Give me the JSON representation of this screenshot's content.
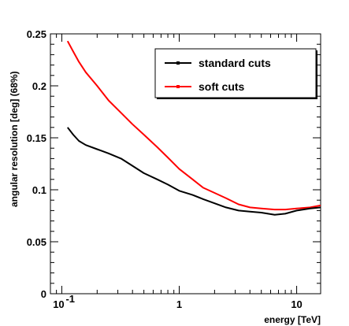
{
  "chart_data": {
    "type": "line",
    "title": "",
    "xlabel": "energy [TeV]",
    "ylabel": "angular resolution [deg] (68%)",
    "xscale": "log",
    "xlim": [
      0.08,
      16
    ],
    "ylim": [
      0,
      0.25
    ],
    "x_ticks": [
      {
        "value": 0.1,
        "label": "10",
        "exponent": "-1"
      },
      {
        "value": 1,
        "label": "1",
        "exponent": ""
      },
      {
        "value": 10,
        "label": "10",
        "exponent": ""
      }
    ],
    "y_ticks": [
      {
        "value": 0,
        "label": "0"
      },
      {
        "value": 0.05,
        "label": "0.05"
      },
      {
        "value": 0.1,
        "label": "0.1"
      },
      {
        "value": 0.15,
        "label": "0.15"
      },
      {
        "value": 0.2,
        "label": "0.2"
      },
      {
        "value": 0.25,
        "label": "0.25"
      }
    ],
    "grid": false,
    "legend_position": "top-right",
    "series": [
      {
        "name": "standard cuts",
        "color": "#000000",
        "x": [
          0.112,
          0.125,
          0.14,
          0.16,
          0.2,
          0.25,
          0.32,
          0.4,
          0.5,
          0.65,
          0.8,
          1.0,
          1.3,
          1.6,
          2.0,
          2.5,
          3.2,
          4.0,
          5.0,
          6.5,
          8.0,
          10.0,
          13.0,
          16.0
        ],
        "y": [
          0.16,
          0.153,
          0.147,
          0.143,
          0.139,
          0.135,
          0.13,
          0.123,
          0.116,
          0.11,
          0.105,
          0.099,
          0.095,
          0.091,
          0.087,
          0.083,
          0.08,
          0.079,
          0.078,
          0.076,
          0.077,
          0.08,
          0.082,
          0.083
        ]
      },
      {
        "name": "soft cuts",
        "color": "#ff0000",
        "x": [
          0.112,
          0.125,
          0.14,
          0.16,
          0.2,
          0.25,
          0.32,
          0.4,
          0.5,
          0.65,
          0.8,
          1.0,
          1.3,
          1.6,
          2.0,
          2.5,
          3.2,
          4.0,
          5.0,
          6.5,
          8.0,
          10.0,
          13.0,
          16.0
        ],
        "y": [
          0.243,
          0.233,
          0.223,
          0.213,
          0.2,
          0.186,
          0.174,
          0.163,
          0.153,
          0.141,
          0.131,
          0.12,
          0.11,
          0.102,
          0.097,
          0.092,
          0.086,
          0.083,
          0.082,
          0.081,
          0.081,
          0.082,
          0.083,
          0.085
        ]
      }
    ]
  }
}
